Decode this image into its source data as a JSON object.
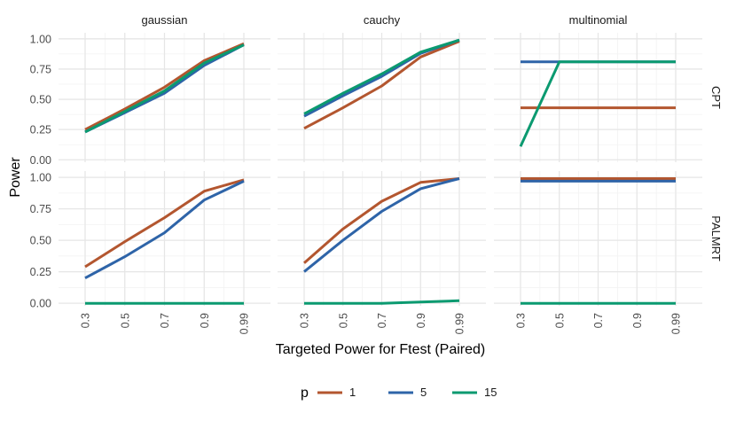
{
  "chart_data": {
    "type": "line",
    "xlabel": "Targeted Power for Ftest (Paired)",
    "ylabel": "Power",
    "x": [
      "0.3",
      "0.5",
      "0.7",
      "0.9",
      "0.99"
    ],
    "x_ticks": [
      "0.3",
      "0.5",
      "0.7",
      "0.9",
      "0.99"
    ],
    "y_ticks": [
      "0.00",
      "0.25",
      "0.50",
      "0.75",
      "1.00"
    ],
    "ylim": [
      -0.02,
      1.05
    ],
    "grid": true,
    "legend_position": "bottom",
    "legend_title": "p",
    "series_keys": [
      "1",
      "5",
      "15"
    ],
    "colors": {
      "1": "#b3562f",
      "5": "#2e64a8",
      "15": "#0b9a70"
    },
    "columns": [
      "gaussian",
      "cauchy",
      "multinomial"
    ],
    "rows": [
      "CPT",
      "PALMRT"
    ],
    "panels": [
      {
        "row": "CPT",
        "column": "gaussian",
        "series": [
          {
            "p": "1",
            "values": [
              0.25,
              0.42,
              0.6,
              0.82,
              0.96
            ]
          },
          {
            "p": "5",
            "values": [
              0.23,
              0.39,
              0.55,
              0.78,
              0.95
            ]
          },
          {
            "p": "15",
            "values": [
              0.23,
              0.4,
              0.57,
              0.8,
              0.95
            ]
          }
        ]
      },
      {
        "row": "CPT",
        "column": "cauchy",
        "series": [
          {
            "p": "1",
            "values": [
              0.26,
              0.43,
              0.61,
              0.85,
              0.98
            ]
          },
          {
            "p": "5",
            "values": [
              0.36,
              0.53,
              0.69,
              0.88,
              0.99
            ]
          },
          {
            "p": "15",
            "values": [
              0.38,
              0.55,
              0.71,
              0.89,
              0.99
            ]
          }
        ]
      },
      {
        "row": "CPT",
        "column": "multinomial",
        "series": [
          {
            "p": "1",
            "values": [
              0.43,
              0.43,
              0.43,
              0.43,
              0.43
            ]
          },
          {
            "p": "5",
            "values": [
              0.81,
              0.81,
              0.81,
              0.81,
              0.81
            ]
          },
          {
            "p": "15",
            "values": [
              0.11,
              0.81,
              0.81,
              0.81,
              0.81
            ]
          }
        ]
      },
      {
        "row": "PALMRT",
        "column": "gaussian",
        "series": [
          {
            "p": "1",
            "values": [
              0.29,
              0.49,
              0.68,
              0.89,
              0.98
            ]
          },
          {
            "p": "5",
            "values": [
              0.2,
              0.37,
              0.56,
              0.82,
              0.97
            ]
          },
          {
            "p": "15",
            "values": [
              0.0,
              0.0,
              0.0,
              0.0,
              0.0
            ]
          }
        ]
      },
      {
        "row": "PALMRT",
        "column": "cauchy",
        "series": [
          {
            "p": "1",
            "values": [
              0.32,
              0.59,
              0.81,
              0.96,
              0.99
            ]
          },
          {
            "p": "5",
            "values": [
              0.25,
              0.5,
              0.73,
              0.91,
              0.99
            ]
          },
          {
            "p": "15",
            "values": [
              0.0,
              0.0,
              0.0,
              0.01,
              0.02
            ]
          }
        ]
      },
      {
        "row": "PALMRT",
        "column": "multinomial",
        "series": [
          {
            "p": "1",
            "values": [
              0.99,
              0.99,
              0.99,
              0.99,
              0.99
            ]
          },
          {
            "p": "5",
            "values": [
              0.97,
              0.97,
              0.97,
              0.97,
              0.97
            ]
          },
          {
            "p": "15",
            "values": [
              0.0,
              0.0,
              0.0,
              0.0,
              0.0
            ]
          }
        ]
      }
    ]
  }
}
